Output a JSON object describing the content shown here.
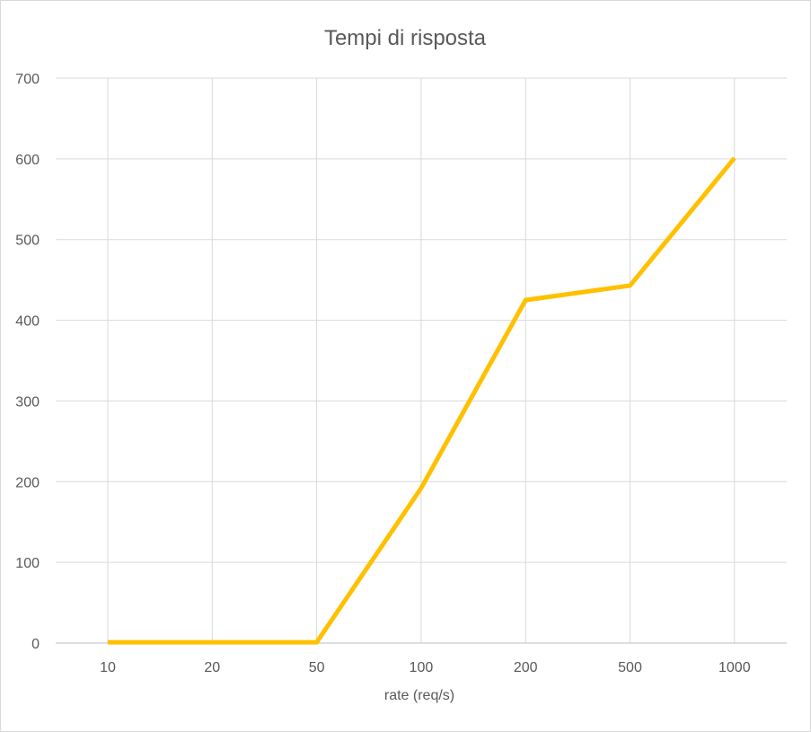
{
  "chart_data": {
    "type": "line",
    "title": "Tempi di risposta",
    "xlabel": "rate (req/s)",
    "ylabel": "",
    "categories": [
      "10",
      "20",
      "50",
      "100",
      "200",
      "500",
      "1000"
    ],
    "series": [
      {
        "values": [
          1,
          1,
          1,
          192,
          425,
          443,
          601
        ],
        "color": "#FFC000"
      }
    ],
    "ylim": [
      0,
      700
    ],
    "yticks": [
      0,
      100,
      200,
      300,
      400,
      500,
      600,
      700
    ],
    "grid": {
      "horizontal": true,
      "vertical": true
    },
    "legend": "none"
  }
}
